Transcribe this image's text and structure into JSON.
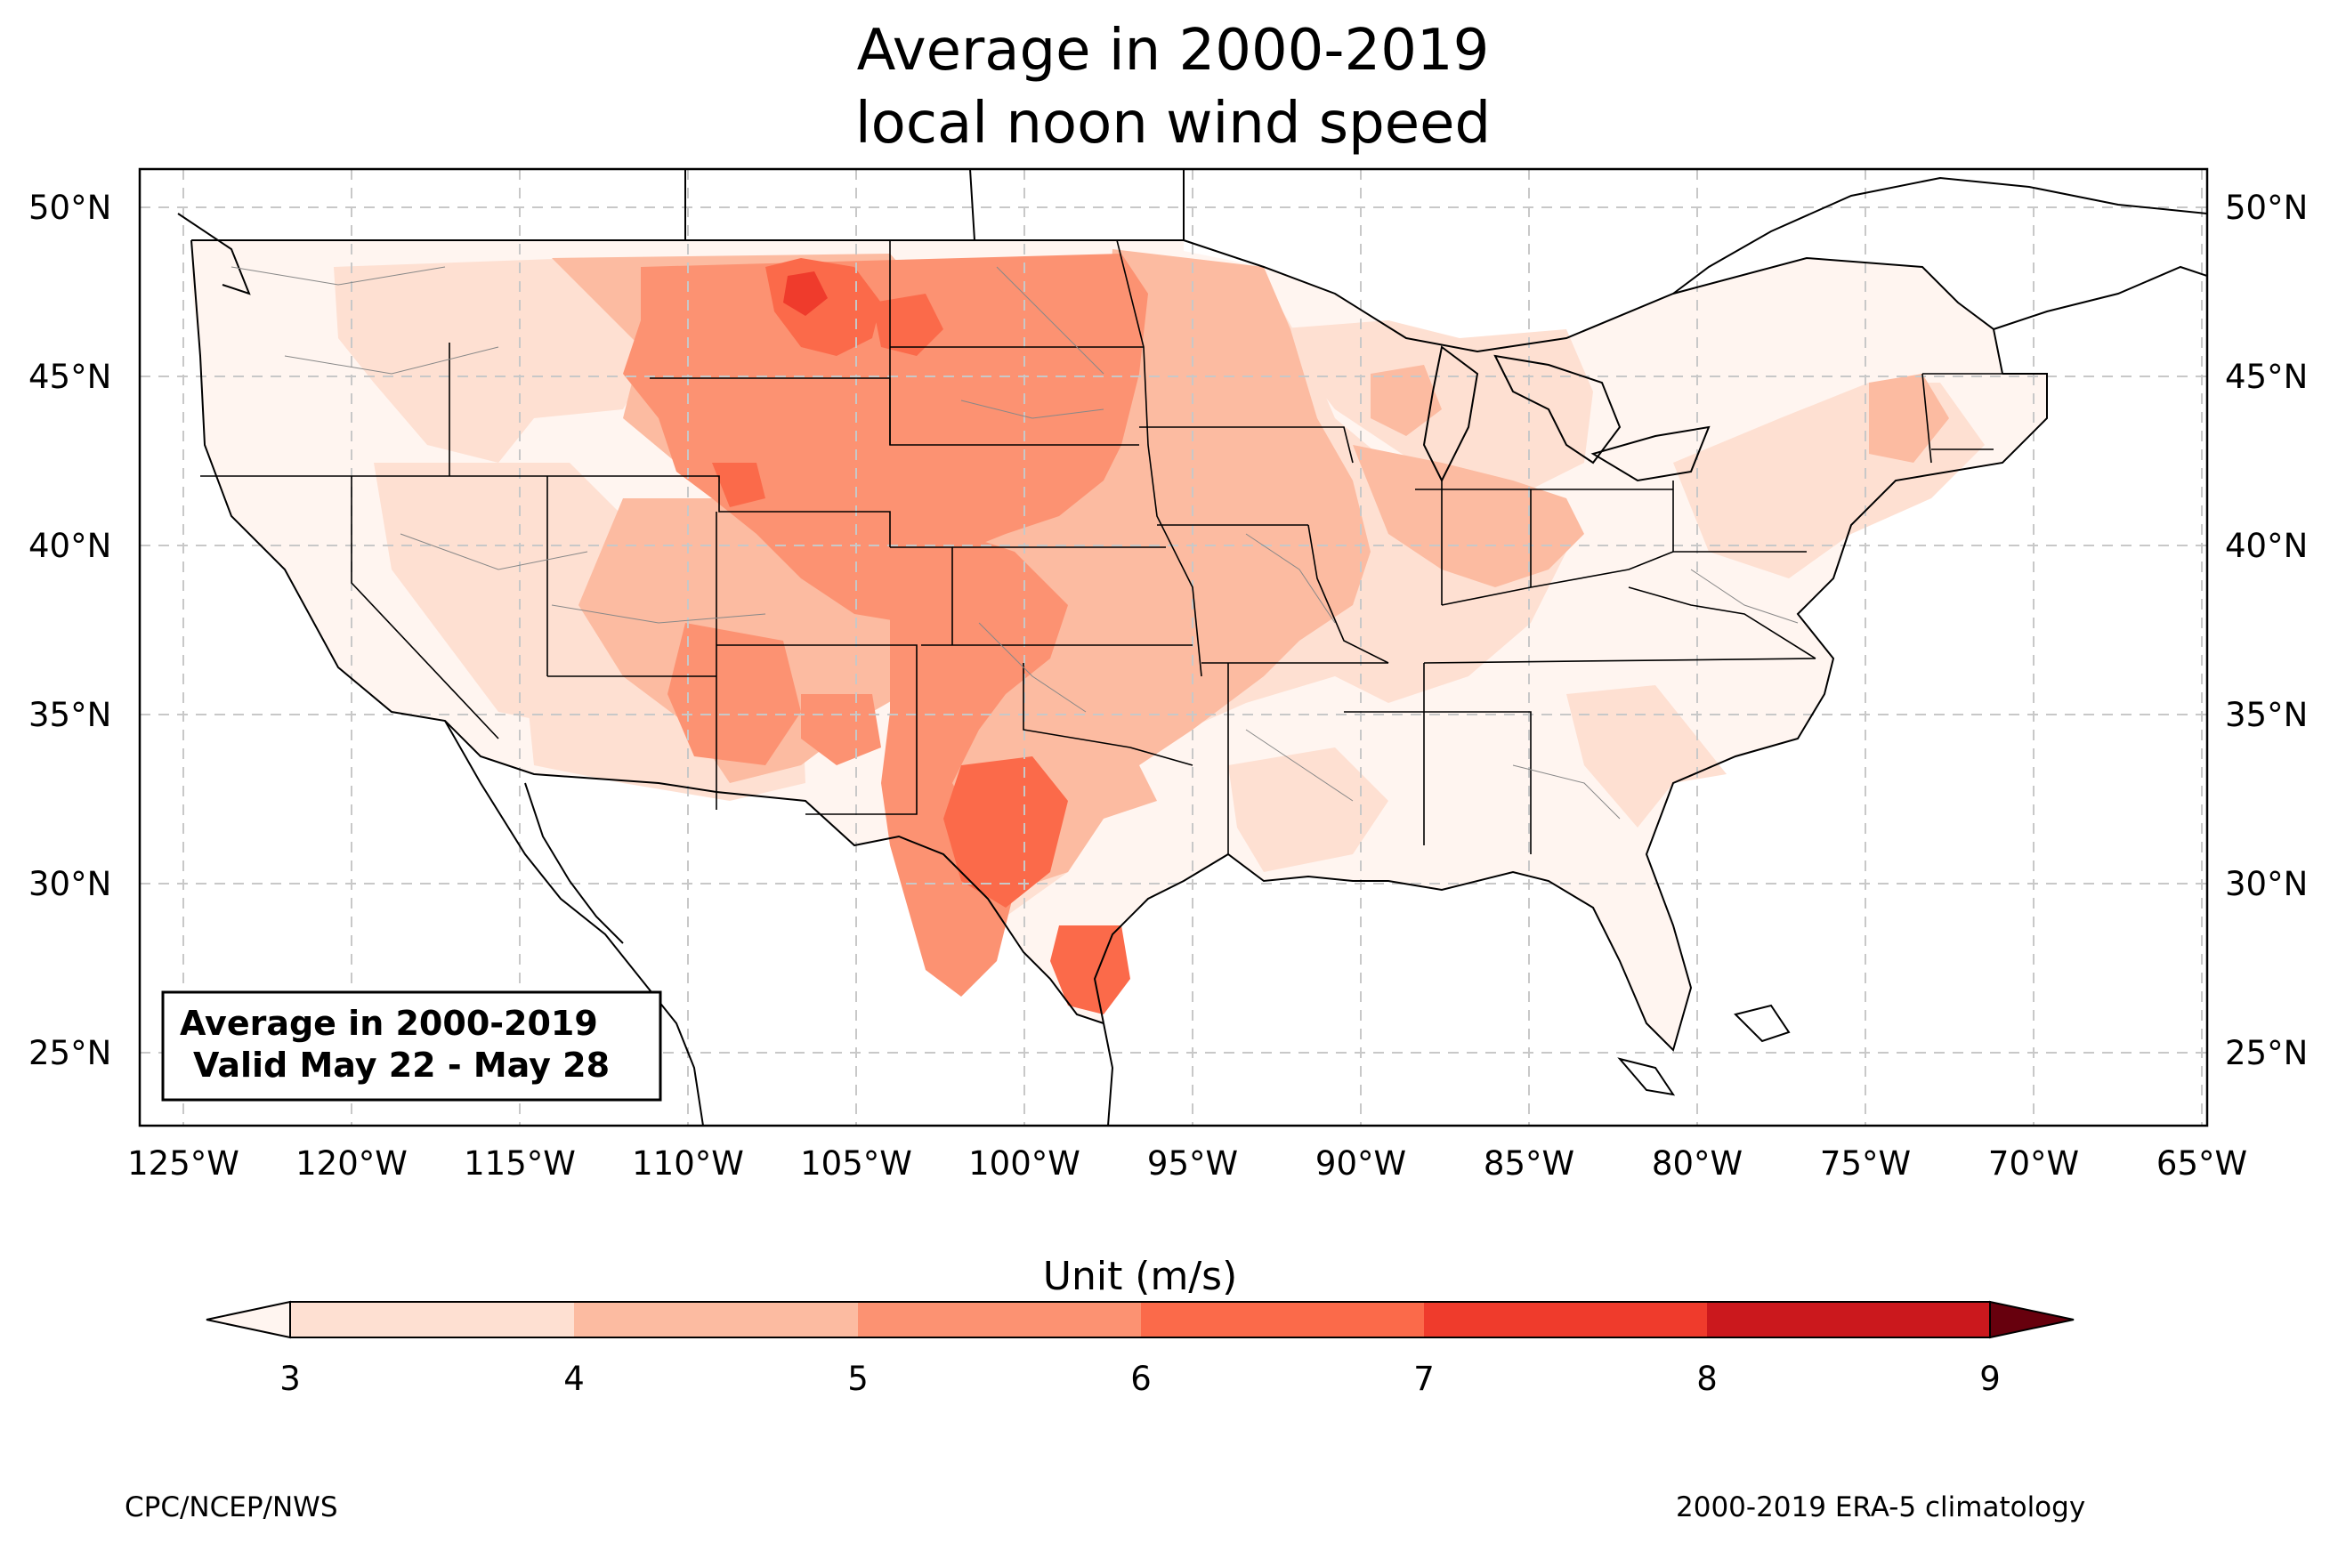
{
  "title_line1": "Average in 2000-2019",
  "title_line2": "local noon wind speed",
  "info_box": {
    "line1": "Average in 2000-2019",
    "line2": "Valid May 22 - May 28"
  },
  "lat_ticks": [
    "50°N",
    "45°N",
    "40°N",
    "35°N",
    "30°N",
    "25°N"
  ],
  "lon_ticks": [
    "125°W",
    "120°W",
    "115°W",
    "110°W",
    "105°W",
    "100°W",
    "95°W",
    "90°W",
    "85°W",
    "80°W",
    "75°W",
    "70°W",
    "65°W"
  ],
  "colorbar": {
    "label": "Unit (m/s)",
    "ticks": [
      "3",
      "4",
      "5",
      "6",
      "7",
      "8",
      "9"
    ],
    "colors": [
      "#fee0d2",
      "#fcbba1",
      "#fc9272",
      "#fb6a4a",
      "#ef3b2c",
      "#cb181d",
      "#99000d"
    ],
    "under_color": "#fff5f0",
    "over_color": "#67000d"
  },
  "footer_left": "CPC/NCEP/NWS",
  "footer_right": "2000-2019 ERA-5 climatology"
}
